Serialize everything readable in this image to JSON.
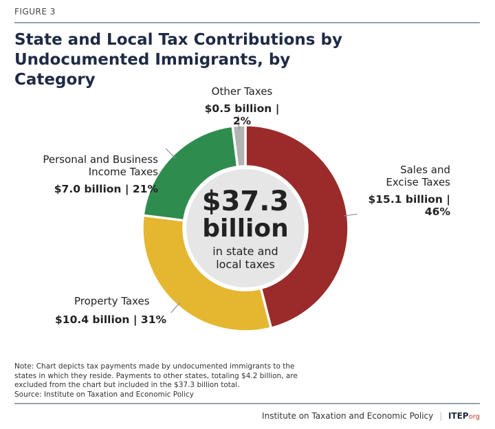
{
  "figure_label": "FIGURE 3",
  "chart_data": {
    "type": "pie",
    "variant": "donut",
    "title": "State and Local Tax Contributions by Undocumented Immigrants, by Category",
    "center": {
      "value": "$37.3",
      "unit": "billion",
      "caption": "in state and local taxes"
    },
    "units": "billion USD",
    "slices": [
      {
        "name": "Sales and Excise Taxes",
        "value": 15.1,
        "percent": 46,
        "label": "$15.1 billion | 46%",
        "color": "#9b2b2a"
      },
      {
        "name": "Property Taxes",
        "value": 10.4,
        "percent": 31,
        "label": "$10.4 billion | 31%",
        "color": "#e5b62f"
      },
      {
        "name": "Personal and Business Income Taxes",
        "value": 7.0,
        "percent": 21,
        "label": "$7.0 billion | 21%",
        "color": "#2f8c4f"
      },
      {
        "name": "Other Taxes",
        "value": 0.5,
        "percent": 2,
        "label": "$0.5 billion | 2%",
        "color": "#b3b3b3"
      }
    ],
    "center_color": "#e6e6e6"
  },
  "note": "Note: Chart depicts tax payments made by undocumented immigrants to the states in which they reside. Payments to other states, totaling $4.2 billion, are excluded from the chart but included in the $37.3 billion total.",
  "source": "Source: Institute on Taxation and Economic Policy",
  "footer": {
    "org": "Institute on Taxation and Economic Policy",
    "brand": "ITEP",
    "brand_suffix": "org"
  }
}
